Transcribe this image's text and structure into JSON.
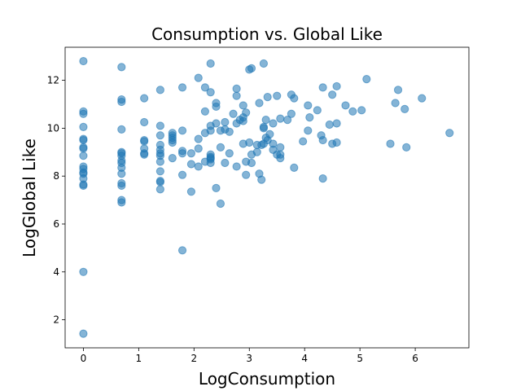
{
  "chart_data": {
    "type": "scatter",
    "title": "Consumption vs. Global Like",
    "xlabel": "LogConsumption",
    "ylabel": "LogGlobal Like",
    "xlim": [
      -0.33,
      6.97
    ],
    "ylim": [
      0.83,
      13.38
    ],
    "xticks": [
      0,
      1,
      2,
      3,
      4,
      5,
      6
    ],
    "yticks": [
      2,
      4,
      6,
      8,
      10,
      12
    ],
    "grid": false,
    "marker_color": "#1f77b4",
    "marker_alpha": 0.55,
    "points": [
      [
        0,
        12.8
      ],
      [
        0,
        10.7
      ],
      [
        0,
        10.6
      ],
      [
        0,
        10.05
      ],
      [
        0,
        9.55
      ],
      [
        0,
        9.5
      ],
      [
        0,
        9.2
      ],
      [
        0,
        9.15
      ],
      [
        0,
        8.85
      ],
      [
        0,
        8.4
      ],
      [
        0,
        8.3
      ],
      [
        0,
        8.15
      ],
      [
        0,
        8.1
      ],
      [
        0,
        7.9
      ],
      [
        0,
        7.65
      ],
      [
        0,
        7.6
      ],
      [
        0,
        4.0
      ],
      [
        0,
        1.42
      ],
      [
        0.69,
        12.55
      ],
      [
        0.69,
        11.2
      ],
      [
        0.69,
        11.1
      ],
      [
        0.69,
        9.95
      ],
      [
        0.69,
        9.0
      ],
      [
        0.69,
        8.95
      ],
      [
        0.69,
        8.85
      ],
      [
        0.69,
        8.65
      ],
      [
        0.69,
        8.55
      ],
      [
        0.69,
        8.35
      ],
      [
        0.69,
        8.1
      ],
      [
        0.69,
        7.7
      ],
      [
        0.69,
        7.6
      ],
      [
        0.69,
        7.0
      ],
      [
        0.69,
        6.9
      ],
      [
        1.1,
        11.25
      ],
      [
        1.1,
        10.25
      ],
      [
        1.1,
        9.5
      ],
      [
        1.1,
        9.45
      ],
      [
        1.1,
        9.15
      ],
      [
        1.1,
        8.95
      ],
      [
        1.1,
        8.9
      ],
      [
        1.39,
        11.6
      ],
      [
        1.39,
        10.1
      ],
      [
        1.39,
        9.7
      ],
      [
        1.39,
        9.3
      ],
      [
        1.39,
        9.1
      ],
      [
        1.39,
        8.95
      ],
      [
        1.39,
        8.85
      ],
      [
        1.39,
        8.6
      ],
      [
        1.39,
        8.2
      ],
      [
        1.39,
        7.8
      ],
      [
        1.39,
        7.75
      ],
      [
        1.39,
        7.45
      ],
      [
        1.61,
        9.8
      ],
      [
        1.61,
        9.7
      ],
      [
        1.61,
        9.6
      ],
      [
        1.61,
        9.5
      ],
      [
        1.61,
        9.4
      ],
      [
        1.61,
        8.75
      ],
      [
        1.79,
        11.7
      ],
      [
        1.79,
        9.9
      ],
      [
        1.79,
        9.05
      ],
      [
        1.79,
        8.95
      ],
      [
        1.79,
        8.05
      ],
      [
        1.79,
        4.9
      ],
      [
        1.95,
        8.95
      ],
      [
        1.95,
        8.5
      ],
      [
        1.95,
        7.35
      ],
      [
        2.08,
        12.1
      ],
      [
        2.08,
        9.55
      ],
      [
        2.08,
        9.15
      ],
      [
        2.08,
        8.4
      ],
      [
        2.2,
        11.7
      ],
      [
        2.2,
        10.7
      ],
      [
        2.2,
        9.8
      ],
      [
        2.2,
        8.6
      ],
      [
        2.3,
        12.7
      ],
      [
        2.3,
        11.5
      ],
      [
        2.3,
        10.1
      ],
      [
        2.3,
        9.9
      ],
      [
        2.3,
        8.9
      ],
      [
        2.3,
        8.8
      ],
      [
        2.3,
        8.75
      ],
      [
        2.3,
        8.7
      ],
      [
        2.3,
        8.55
      ],
      [
        2.4,
        11.05
      ],
      [
        2.4,
        10.9
      ],
      [
        2.4,
        10.2
      ],
      [
        2.4,
        7.5
      ],
      [
        2.48,
        9.9
      ],
      [
        2.48,
        9.2
      ],
      [
        2.48,
        6.85
      ],
      [
        2.56,
        10.25
      ],
      [
        2.56,
        9.95
      ],
      [
        2.56,
        8.55
      ],
      [
        2.64,
        9.85
      ],
      [
        2.64,
        8.95
      ],
      [
        2.71,
        10.6
      ],
      [
        2.77,
        11.65
      ],
      [
        2.77,
        11.35
      ],
      [
        2.77,
        10.2
      ],
      [
        2.77,
        8.4
      ],
      [
        2.83,
        10.35
      ],
      [
        2.89,
        10.95
      ],
      [
        2.89,
        10.45
      ],
      [
        2.89,
        10.3
      ],
      [
        2.89,
        9.35
      ],
      [
        2.94,
        10.65
      ],
      [
        2.94,
        8.6
      ],
      [
        2.94,
        8.05
      ],
      [
        3.0,
        12.45
      ],
      [
        3.0,
        9.4
      ],
      [
        3.04,
        12.5
      ],
      [
        3.04,
        8.9
      ],
      [
        3.04,
        8.55
      ],
      [
        3.14,
        9.3
      ],
      [
        3.14,
        9.0
      ],
      [
        3.18,
        11.05
      ],
      [
        3.18,
        8.1
      ],
      [
        3.22,
        9.3
      ],
      [
        3.22,
        7.85
      ],
      [
        3.26,
        12.7
      ],
      [
        3.26,
        10.05
      ],
      [
        3.26,
        10.0
      ],
      [
        3.26,
        9.35
      ],
      [
        3.3,
        10.35
      ],
      [
        3.3,
        9.6
      ],
      [
        3.33,
        11.3
      ],
      [
        3.33,
        9.5
      ],
      [
        3.37,
        9.75
      ],
      [
        3.43,
        10.2
      ],
      [
        3.43,
        9.35
      ],
      [
        3.43,
        9.1
      ],
      [
        3.5,
        11.35
      ],
      [
        3.5,
        8.9
      ],
      [
        3.56,
        10.4
      ],
      [
        3.56,
        9.2
      ],
      [
        3.56,
        8.9
      ],
      [
        3.56,
        8.75
      ],
      [
        3.69,
        10.35
      ],
      [
        3.76,
        11.4
      ],
      [
        3.76,
        10.6
      ],
      [
        3.81,
        11.25
      ],
      [
        3.81,
        8.35
      ],
      [
        3.97,
        9.45
      ],
      [
        4.06,
        10.95
      ],
      [
        4.06,
        9.9
      ],
      [
        4.09,
        10.45
      ],
      [
        4.23,
        10.75
      ],
      [
        4.3,
        9.7
      ],
      [
        4.33,
        11.7
      ],
      [
        4.33,
        9.5
      ],
      [
        4.33,
        7.9
      ],
      [
        4.45,
        10.15
      ],
      [
        4.5,
        11.4
      ],
      [
        4.5,
        9.35
      ],
      [
        4.58,
        11.75
      ],
      [
        4.58,
        10.2
      ],
      [
        4.58,
        9.4
      ],
      [
        4.74,
        10.95
      ],
      [
        4.87,
        10.7
      ],
      [
        5.03,
        10.75
      ],
      [
        5.12,
        12.05
      ],
      [
        5.55,
        9.35
      ],
      [
        5.64,
        11.05
      ],
      [
        5.69,
        11.6
      ],
      [
        5.81,
        10.8
      ],
      [
        5.84,
        9.2
      ],
      [
        6.12,
        11.25
      ],
      [
        6.62,
        9.8
      ]
    ]
  }
}
